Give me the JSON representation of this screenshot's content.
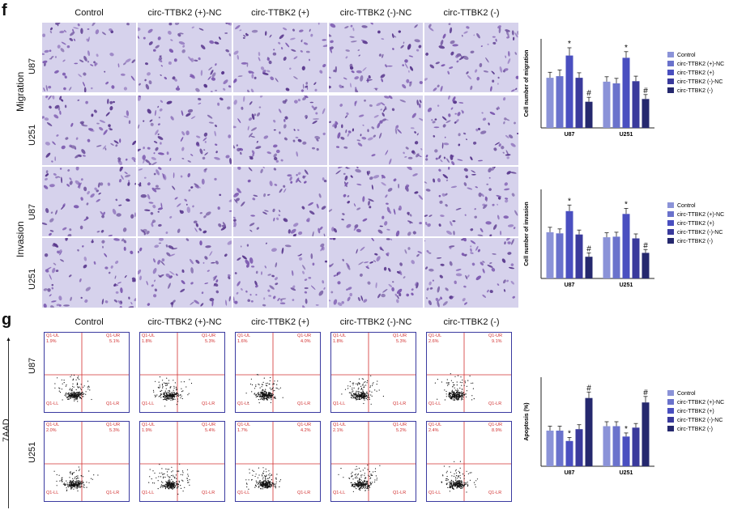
{
  "panels": {
    "f": {
      "letter": "f",
      "columns": [
        "Control",
        "circ-TTBK2 (+)-NC",
        "circ-TTBK2 (+)",
        "circ-TTBK2 (-)-NC",
        "circ-TTBK2 (-)"
      ],
      "groups": [
        "Migration",
        "Invasion"
      ],
      "rows": [
        "U87",
        "U251"
      ]
    },
    "g": {
      "letter": "g",
      "columns": [
        "Control",
        "circ-TTBK2 (+)-NC",
        "circ-TTBK2 (+)",
        "circ-TTBK2 (-)-NC",
        "circ-TTBK2 (-)"
      ],
      "rows": [
        "U87",
        "U251"
      ],
      "yaxis": "7AAD",
      "quadrants": {
        "ul": "Q1-UL",
        "ur": "Q1-UR",
        "ll": "Q1-LL",
        "lr": "Q1-LR"
      },
      "ul_values": [
        [
          "1.9%",
          "1.8%",
          "1.6%",
          "1.8%",
          "2.6%"
        ],
        [
          "2.0%",
          "1.9%",
          "1.7%",
          "2.1%",
          "2.4%"
        ]
      ],
      "ur_values": [
        [
          "5.1%",
          "5.3%",
          "4.0%",
          "5.3%",
          "9.1%"
        ],
        [
          "5.3%",
          "5.4%",
          "4.2%",
          "5.2%",
          "8.9%"
        ]
      ]
    }
  },
  "chart_data": [
    {
      "type": "bar",
      "categories": [
        "U87",
        "U251"
      ],
      "ylabel": "Cell number of migration",
      "ylim": [
        0,
        160
      ],
      "series": [
        {
          "name": "Control",
          "values": [
            90,
            83
          ],
          "errors": [
            10,
            9
          ],
          "color": "#8b93d8"
        },
        {
          "name": "circ-TTBK2 (+)-NC",
          "values": [
            93,
            80
          ],
          "errors": [
            11,
            9
          ],
          "color": "#6a72cc"
        },
        {
          "name": "circ-TTBK2 (+)",
          "values": [
            130,
            126
          ],
          "errors": [
            14,
            11
          ],
          "color": "#4a4fc0"
        },
        {
          "name": "circ-TTBK2 (-)-NC",
          "values": [
            90,
            84
          ],
          "errors": [
            9,
            9
          ],
          "color": "#3a3a9c"
        },
        {
          "name": "circ-TTBK2 (-)",
          "values": [
            47,
            52
          ],
          "errors": [
            8,
            8
          ],
          "color": "#25286e"
        }
      ],
      "annotations": [
        [
          "",
          "",
          "*",
          "",
          "#"
        ],
        [
          "",
          "",
          "*",
          "",
          "#"
        ]
      ]
    },
    {
      "type": "bar",
      "categories": [
        "U87",
        "U251"
      ],
      "ylabel": "Cell number of invasion",
      "ylim": [
        0,
        160
      ],
      "series": [
        {
          "name": "Control",
          "values": [
            83,
            74
          ],
          "errors": [
            9,
            8
          ],
          "color": "#8b93d8"
        },
        {
          "name": "circ-TTBK2 (+)-NC",
          "values": [
            81,
            75
          ],
          "errors": [
            8,
            8
          ],
          "color": "#6a72cc"
        },
        {
          "name": "circ-TTBK2 (+)",
          "values": [
            121,
            116
          ],
          "errors": [
            11,
            10
          ],
          "color": "#4a4fc0"
        },
        {
          "name": "circ-TTBK2 (-)-NC",
          "values": [
            79,
            72
          ],
          "errors": [
            8,
            8
          ],
          "color": "#3a3a9c"
        },
        {
          "name": "circ-TTBK2 (-)",
          "values": [
            39,
            46
          ],
          "errors": [
            7,
            6
          ],
          "color": "#25286e"
        }
      ],
      "annotations": [
        [
          "",
          "",
          "*",
          "",
          "#"
        ],
        [
          "",
          "",
          "*",
          "",
          "#"
        ]
      ]
    },
    {
      "type": "bar",
      "categories": [
        "U87",
        "U251"
      ],
      "ylabel": "Apoptosis (%)",
      "ylim": [
        0,
        30
      ],
      "series": [
        {
          "name": "Control",
          "values": [
            12,
            13.5
          ],
          "errors": [
            1.5,
            1.5
          ],
          "color": "#8b93d8"
        },
        {
          "name": "circ-TTBK2 (+)-NC",
          "values": [
            12,
            13.5
          ],
          "errors": [
            1.5,
            1.5
          ],
          "color": "#6a72cc"
        },
        {
          "name": "circ-TTBK2 (+)",
          "values": [
            8.5,
            10
          ],
          "errors": [
            1.2,
            1.2
          ],
          "color": "#4a4fc0"
        },
        {
          "name": "circ-TTBK2 (-)-NC",
          "values": [
            12.5,
            13
          ],
          "errors": [
            1.5,
            1.4
          ],
          "color": "#3a3a9c"
        },
        {
          "name": "circ-TTBK2 (-)",
          "values": [
            23,
            21.5
          ],
          "errors": [
            2,
            2
          ],
          "color": "#25286e"
        }
      ],
      "annotations": [
        [
          "",
          "",
          "*",
          "",
          "#"
        ],
        [
          "",
          "",
          "*",
          "",
          "#"
        ]
      ]
    }
  ]
}
